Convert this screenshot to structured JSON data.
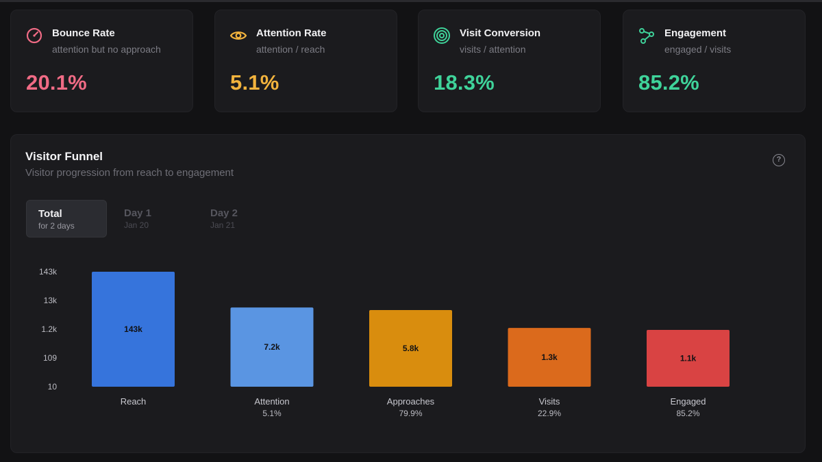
{
  "cards": [
    {
      "title": "Bounce Rate",
      "subtitle": "attention but no approach",
      "value": "20.1%",
      "color": "#f06b85",
      "icon": "gauge-icon"
    },
    {
      "title": "Attention Rate",
      "subtitle": "attention / reach",
      "value": "5.1%",
      "color": "#f2b33d",
      "icon": "eye-icon"
    },
    {
      "title": "Visit Conversion",
      "subtitle": "visits / attention",
      "value": "18.3%",
      "color": "#3fd39a",
      "icon": "target-icon"
    },
    {
      "title": "Engagement",
      "subtitle": "engaged / visits",
      "value": "85.2%",
      "color": "#3fd39a",
      "icon": "share-nodes-icon"
    }
  ],
  "funnel": {
    "title": "Visitor Funnel",
    "subtitle": "Visitor progression from reach to engagement",
    "help_icon": "help-circle-icon",
    "tabs": [
      {
        "label": "Total",
        "sub": "for 2 days",
        "active": true
      },
      {
        "label": "Day 1",
        "sub": "Jan 20",
        "active": false
      },
      {
        "label": "Day 2",
        "sub": "Jan 21",
        "active": false
      }
    ]
  },
  "chart_data": {
    "type": "bar",
    "scale": "log",
    "ylim": [
      10,
      143000
    ],
    "y_ticks": [
      {
        "value": 143000,
        "label": "143k"
      },
      {
        "value": 13000,
        "label": "13k"
      },
      {
        "value": 1200,
        "label": "1.2k"
      },
      {
        "value": 109,
        "label": "109"
      },
      {
        "value": 10,
        "label": "10"
      }
    ],
    "categories": [
      "Reach",
      "Attention",
      "Approaches",
      "Visits",
      "Engaged"
    ],
    "values": [
      143000,
      7200,
      5800,
      1300,
      1100
    ],
    "value_labels": [
      "143k",
      "7.2k",
      "5.8k",
      "1.3k",
      "1.1k"
    ],
    "rates": [
      "",
      "5.1%",
      "79.9%",
      "22.9%",
      "85.2%"
    ],
    "colors": [
      "#3674dc",
      "#5a95e2",
      "#d98d0e",
      "#db6a1c",
      "#d94343"
    ]
  }
}
